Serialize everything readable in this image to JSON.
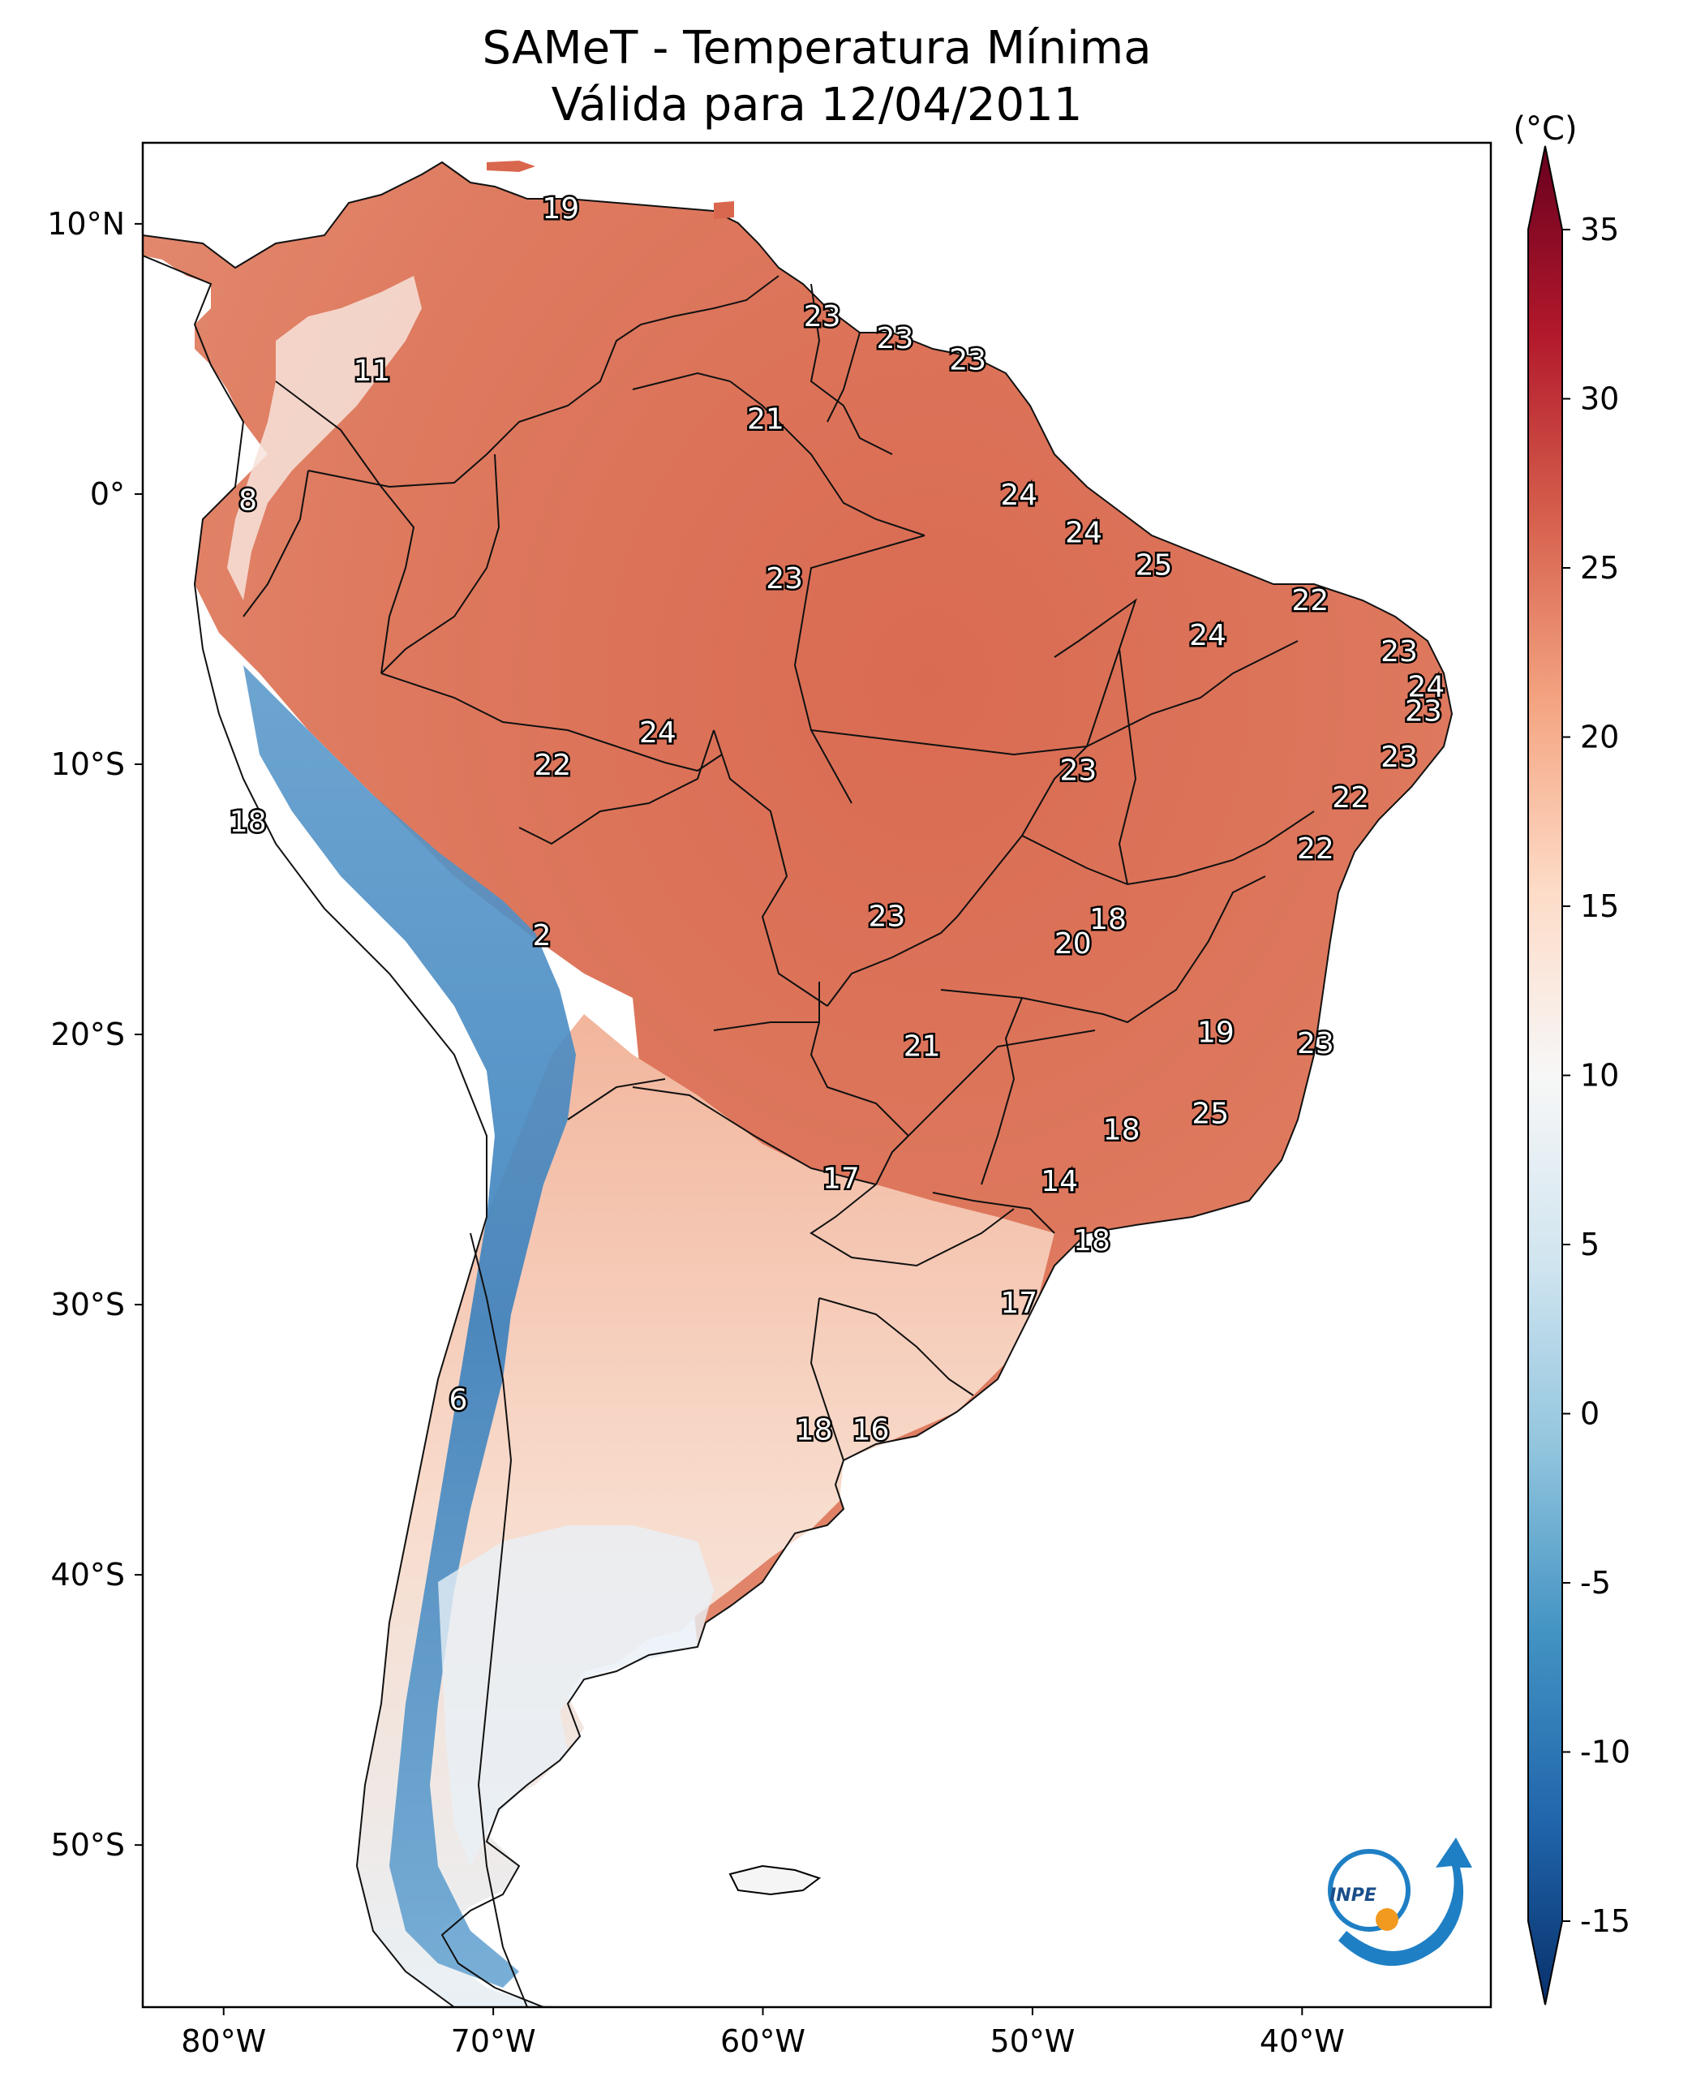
{
  "title": {
    "line1": "SAMeT - Temperatura Mínima",
    "line2": "Válida para 12/04/2011"
  },
  "axes": {
    "lon_ticks": [
      "80°W",
      "70°W",
      "60°W",
      "50°W",
      "40°W"
    ],
    "lat_ticks": [
      "10°N",
      "0°",
      "10°S",
      "20°S",
      "30°S",
      "40°S",
      "50°S"
    ],
    "lon_range": [
      -83,
      -33
    ],
    "lat_range": [
      -56,
      13
    ]
  },
  "colorbar": {
    "unit": "(°C)",
    "ticks": [
      "35",
      "30",
      "25",
      "20",
      "15",
      "10",
      "5",
      "0",
      "-5",
      "-10",
      "-15"
    ],
    "range": [
      -15,
      35
    ],
    "colors": [
      "#08306b",
      "#2166ac",
      "#4393c3",
      "#92c5de",
      "#d1e5f0",
      "#f7f7f7",
      "#fddbc7",
      "#f4a582",
      "#d6604d",
      "#b2182b",
      "#67001f"
    ]
  },
  "station_values": [
    {
      "value": "19",
      "lon": -67.5,
      "lat": 10.6
    },
    {
      "value": "11",
      "lon": -74.5,
      "lat": 4.6
    },
    {
      "value": "23",
      "lon": -57.8,
      "lat": 6.6
    },
    {
      "value": "23",
      "lon": -55.1,
      "lat": 5.8
    },
    {
      "value": "23",
      "lon": -52.4,
      "lat": 5.0
    },
    {
      "value": "21",
      "lon": -59.9,
      "lat": 2.8
    },
    {
      "value": "8",
      "lon": -79.1,
      "lat": -0.2
    },
    {
      "value": "24",
      "lon": -50.5,
      "lat": 0.0
    },
    {
      "value": "24",
      "lon": -48.1,
      "lat": -1.4
    },
    {
      "value": "25",
      "lon": -45.5,
      "lat": -2.6
    },
    {
      "value": "22",
      "lon": -39.7,
      "lat": -3.9
    },
    {
      "value": "23",
      "lon": -59.2,
      "lat": -3.1
    },
    {
      "value": "24",
      "lon": -43.5,
      "lat": -5.2
    },
    {
      "value": "23",
      "lon": -36.4,
      "lat": -5.8
    },
    {
      "value": "24",
      "lon": -35.4,
      "lat": -7.1
    },
    {
      "value": "23",
      "lon": -35.5,
      "lat": -8.0
    },
    {
      "value": "24",
      "lon": -63.9,
      "lat": -8.8
    },
    {
      "value": "22",
      "lon": -67.8,
      "lat": -10.0
    },
    {
      "value": "23",
      "lon": -48.3,
      "lat": -10.2
    },
    {
      "value": "23",
      "lon": -36.4,
      "lat": -9.7
    },
    {
      "value": "22",
      "lon": -38.2,
      "lat": -11.2
    },
    {
      "value": "18",
      "lon": -79.1,
      "lat": -12.1
    },
    {
      "value": "22",
      "lon": -39.5,
      "lat": -13.1
    },
    {
      "value": "23",
      "lon": -55.4,
      "lat": -15.6
    },
    {
      "value": "18",
      "lon": -47.2,
      "lat": -15.7
    },
    {
      "value": "2",
      "lon": -68.2,
      "lat": -16.3
    },
    {
      "value": "20",
      "lon": -48.5,
      "lat": -16.6
    },
    {
      "value": "19",
      "lon": -43.2,
      "lat": -19.9
    },
    {
      "value": "23",
      "lon": -39.5,
      "lat": -20.3
    },
    {
      "value": "21",
      "lon": -54.1,
      "lat": -20.4
    },
    {
      "value": "25",
      "lon": -43.4,
      "lat": -22.9
    },
    {
      "value": "18",
      "lon": -46.7,
      "lat": -23.5
    },
    {
      "value": "17",
      "lon": -57.1,
      "lat": -25.3
    },
    {
      "value": "14",
      "lon": -49.0,
      "lat": -25.4
    },
    {
      "value": "18",
      "lon": -47.8,
      "lat": -27.6
    },
    {
      "value": "17",
      "lon": -50.5,
      "lat": -29.9
    },
    {
      "value": "6",
      "lon": -71.3,
      "lat": -33.5
    },
    {
      "value": "18",
      "lon": -58.1,
      "lat": -34.6
    },
    {
      "value": "16",
      "lon": -56.0,
      "lat": -34.6
    }
  ]
}
